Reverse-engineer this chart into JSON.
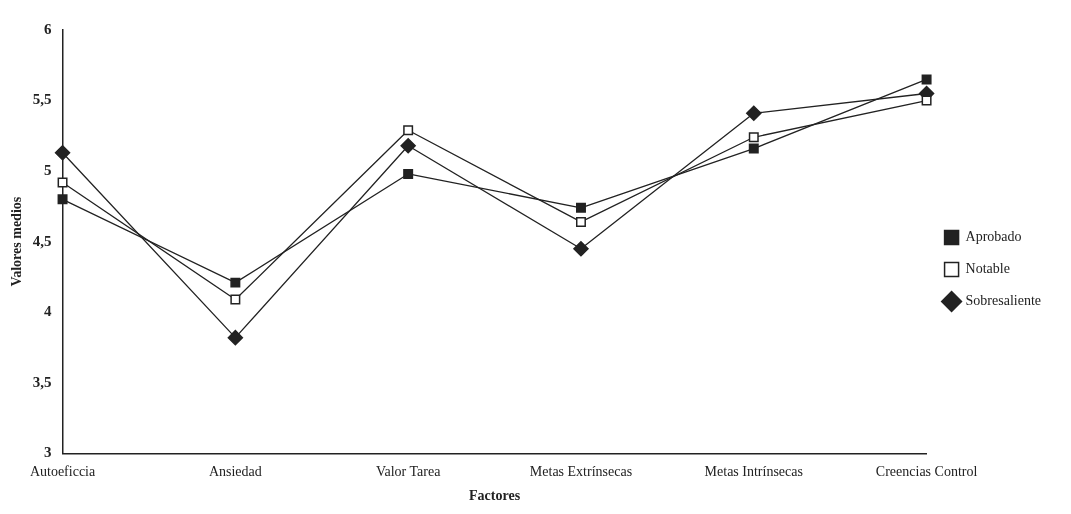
{
  "chart_data": {
    "type": "line",
    "xlabel": "Factores",
    "ylabel": "Valores medios",
    "categories": [
      "Autoeficcia",
      "Ansiedad",
      "Valor Tarea",
      "Metas Extrínsecas",
      "Metas Intrínsecas",
      "Creencias Control"
    ],
    "series": [
      {
        "name": "Aprobado",
        "color": "#222222",
        "marker": "square",
        "values": [
          4.8,
          4.21,
          4.98,
          4.74,
          5.16,
          5.65
        ]
      },
      {
        "name": "Notable",
        "color": "#222222",
        "marker": "square-open",
        "values": [
          4.92,
          4.09,
          5.29,
          4.64,
          5.24,
          5.5
        ]
      },
      {
        "name": "Sobresaliente",
        "color": "#222222",
        "marker": "diamond",
        "values": [
          5.13,
          3.82,
          5.18,
          4.45,
          5.41,
          5.55
        ]
      }
    ],
    "ylim": [
      3,
      6
    ],
    "yticks": [
      3,
      {
        "value": 3.5,
        "label": "3,5"
      },
      4,
      {
        "value": 4.5,
        "label": "4,5"
      },
      5,
      {
        "value": 5.5,
        "label": "5,5"
      },
      6
    ],
    "grid": false,
    "legend": "right",
    "line_style": "solid"
  }
}
